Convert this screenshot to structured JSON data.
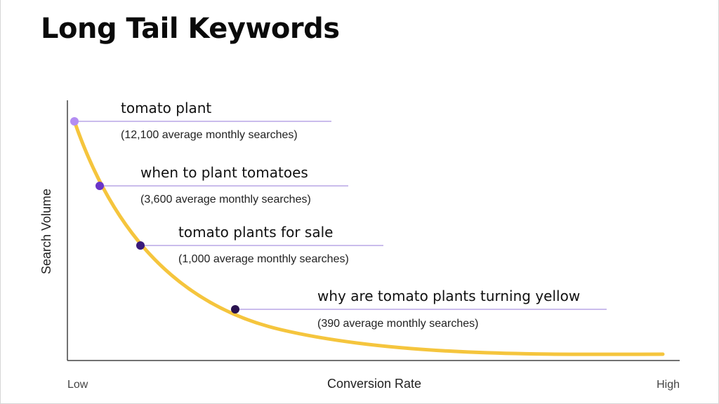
{
  "title": "Long Tail Keywords",
  "axes": {
    "x_label": "Conversion Rate",
    "y_label": "Search Volume",
    "x_low": "Low",
    "x_high": "High"
  },
  "keywords": [
    {
      "keyword": "tomato plant",
      "searches": "(12,100 average monthly searches)",
      "monthly_searches": 12100
    },
    {
      "keyword": "when to plant tomatoes",
      "searches": "(3,600 average monthly searches)",
      "monthly_searches": 3600
    },
    {
      "keyword": "tomato plants for sale",
      "searches": "(1,000 average monthly searches)",
      "monthly_searches": 1000
    },
    {
      "keyword": "why are tomato plants turning yellow",
      "searches": "(390 average monthly searches)",
      "monthly_searches": 390
    }
  ],
  "colors": {
    "curve": "#f5c53d",
    "axis": "#444444",
    "leader_lines": "#b9a6e6",
    "point_1": "#b38df2",
    "point_2": "#6a35c8",
    "point_3": "#3a1a7a",
    "point_4": "#2a1250"
  }
}
